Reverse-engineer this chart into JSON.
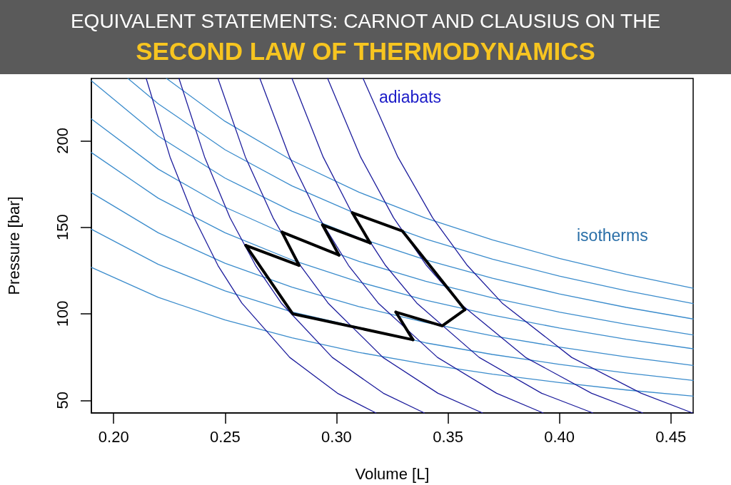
{
  "chart_data": {
    "type": "line",
    "title": "EQUIVALENT STATEMENTS: CARNOT AND CLAUSIUS ON THE",
    "subtitle": "SECOND LAW OF THERMODYNAMICS",
    "xlabel": "Volume [L]",
    "ylabel": "Pressure [bar]",
    "xlim": [
      0.19,
      0.46
    ],
    "xticks": [
      {
        "value": 0.2,
        "label": "0.20"
      },
      0.25,
      {
        "value": 0.3,
        "label": "0.30"
      },
      0.35,
      {
        "value": 0.4,
        "label": "0.40"
      },
      0.45
    ],
    "ylim": [
      42.7,
      236
    ],
    "yticks": [
      50,
      100,
      150,
      200
    ],
    "marker": "none",
    "line_style": "solid",
    "annotations": [
      "adiabats",
      "isotherms"
    ],
    "series": [
      {
        "color": "#3b8ccc",
        "x": [
          0.2237,
          0.25,
          0.28,
          0.31,
          0.34,
          0.37,
          0.4,
          0.43,
          0.46
        ],
        "values": [
          236.0,
          211.2,
          188.6,
          170.3,
          155.3,
          142.7,
          132.0,
          122.8,
          114.8
        ]
      },
      {
        "color": "#3b8ccc",
        "x": [
          0.2064,
          0.22,
          0.25,
          0.28,
          0.31,
          0.34,
          0.37,
          0.4,
          0.43,
          0.46
        ],
        "values": [
          236.0,
          221.4,
          194.8,
          173.9,
          157.1,
          143.2,
          131.6,
          121.8,
          113.3,
          105.9
        ]
      },
      {
        "color": "#3b8ccc",
        "x": [
          0.19,
          0.22,
          0.25,
          0.28,
          0.31,
          0.34,
          0.37,
          0.4,
          0.43,
          0.46
        ],
        "values": [
          234.7,
          202.7,
          178.4,
          159.3,
          143.9,
          131.2,
          120.5,
          111.5,
          103.7,
          97.0
        ]
      },
      {
        "color": "#3b8ccc",
        "x": [
          0.19,
          0.22,
          0.25,
          0.28,
          0.31,
          0.34,
          0.37,
          0.4,
          0.43,
          0.46
        ],
        "values": [
          212.6,
          183.6,
          161.6,
          144.3,
          130.3,
          118.8,
          109.2,
          101.0,
          94.0,
          87.8
        ]
      },
      {
        "color": "#3b8ccc",
        "x": [
          0.19,
          0.22,
          0.25,
          0.28,
          0.31,
          0.34,
          0.37,
          0.4,
          0.43,
          0.46
        ],
        "values": [
          193.2,
          166.8,
          146.8,
          131.1,
          118.4,
          107.9,
          99.2,
          91.8,
          85.3,
          79.8
        ]
      },
      {
        "color": "#3b8ccc",
        "x": [
          0.19,
          0.22,
          0.25,
          0.28,
          0.31,
          0.34,
          0.37,
          0.4,
          0.43,
          0.46
        ],
        "values": [
          170.0,
          146.8,
          129.2,
          115.4,
          104.2,
          95.0,
          87.3,
          80.8,
          75.1,
          70.2
        ]
      },
      {
        "color": "#3b8ccc",
        "x": [
          0.19,
          0.22,
          0.25,
          0.28,
          0.34,
          0.37,
          0.4,
          0.43,
          0.46
        ],
        "values": [
          148.9,
          128.6,
          113.2,
          101.1,
          83.2,
          76.5,
          70.8,
          65.8,
          61.5
        ]
      },
      {
        "color": "#3b8ccc",
        "x": [
          0.19,
          0.22,
          0.25,
          0.28,
          0.31,
          0.34,
          0.37,
          0.4,
          0.43,
          0.46
        ],
        "values": [
          126.8,
          109.5,
          96.4,
          86.1,
          77.7,
          70.9,
          65.1,
          60.3,
          56.0,
          52.4
        ]
      },
      {
        "color": "#1c1c9c",
        "x": [
          0.2146,
          0.2253,
          0.2361,
          0.2468,
          0.2575,
          0.279,
          0.3004,
          0.3177
        ],
        "values": [
          236,
          190.6,
          155.5,
          127.9,
          106.2,
          74.8,
          54.1,
          42.7
        ]
      },
      {
        "color": "#1c1c9c",
        "x": [
          0.2293,
          0.2408,
          0.2522,
          0.2637,
          0.2752,
          0.2981,
          0.321,
          0.3394
        ],
        "values": [
          236,
          190.6,
          155.5,
          127.9,
          106.2,
          74.8,
          54.1,
          42.7
        ]
      },
      {
        "color": "#1c1c9c",
        "x": [
          0.2468,
          0.2591,
          0.2715,
          0.2838,
          0.2962,
          0.3208,
          0.3455,
          0.3655
        ],
        "values": [
          236,
          190.6,
          155.5,
          127.9,
          106.2,
          74.8,
          54.1,
          42.7
        ]
      },
      {
        "color": "#1c1c9c",
        "x": [
          0.2656,
          0.2789,
          0.2922,
          0.3054,
          0.3187,
          0.3453,
          0.3718,
          0.3927
        ],
        "values": [
          236,
          190.6,
          155.5,
          127.9,
          106.2,
          74.8,
          54.1,
          42.7
        ]
      },
      {
        "color": "#1c1c9c",
        "x": [
          0.28,
          0.294,
          0.308,
          0.322,
          0.336,
          0.364,
          0.392,
          0.415
        ],
        "values": [
          236,
          190.6,
          155.5,
          127.9,
          106.2,
          74.8,
          54.1,
          42.7
        ]
      },
      {
        "color": "#1c1c9c",
        "x": [
          0.296,
          0.3108,
          0.3256,
          0.3404,
          0.3552,
          0.3848,
          0.4144,
          0.4374
        ],
        "values": [
          236,
          190.6,
          155.5,
          127.9,
          106.2,
          74.8,
          54.1,
          42.7
        ]
      },
      {
        "color": "#1c1c9c",
        "x": [
          0.3119,
          0.3275,
          0.3431,
          0.3587,
          0.3743,
          0.4055,
          0.4367,
          0.4597
        ],
        "values": [
          236,
          190.6,
          155.5,
          127.9,
          106.2,
          74.8,
          54.1,
          42.7
        ]
      },
      {
        "color": "#000000",
        "x": [
          0.2593,
          0.2832
        ],
        "values": [
          139.5,
          128.0
        ]
      },
      {
        "color": "#000000",
        "x": [
          0.2755,
          0.2832
        ],
        "values": [
          147.2,
          128.0
        ]
      },
      {
        "color": "#000000",
        "x": [
          0.2755,
          0.3011
        ],
        "values": [
          147.2,
          133.9
        ]
      },
      {
        "color": "#000000",
        "x": [
          0.2937,
          0.3011
        ],
        "values": [
          151.4,
          133.9
        ]
      },
      {
        "color": "#000000",
        "x": [
          0.2937,
          0.3151
        ],
        "values": [
          151.4,
          140.9
        ]
      },
      {
        "color": "#000000",
        "x": [
          0.3071,
          0.3151
        ],
        "values": [
          158.4,
          140.9
        ]
      },
      {
        "color": "#000000",
        "x": [
          0.3071,
          0.3295,
          0.3576
        ],
        "values": [
          158.4,
          147.9,
          102.4
        ]
      },
      {
        "color": "#000000",
        "x": [
          0.3266,
          0.3474,
          0.3576
        ],
        "values": [
          101.0,
          93.0,
          102.4
        ]
      },
      {
        "color": "#000000",
        "x": [
          0.3266,
          0.3343
        ],
        "values": [
          101.0,
          85.0
        ]
      },
      {
        "color": "#000000",
        "x": [
          0.2593,
          0.2803,
          0.3343
        ],
        "values": [
          139.5,
          100.0,
          85.0
        ]
      }
    ]
  }
}
